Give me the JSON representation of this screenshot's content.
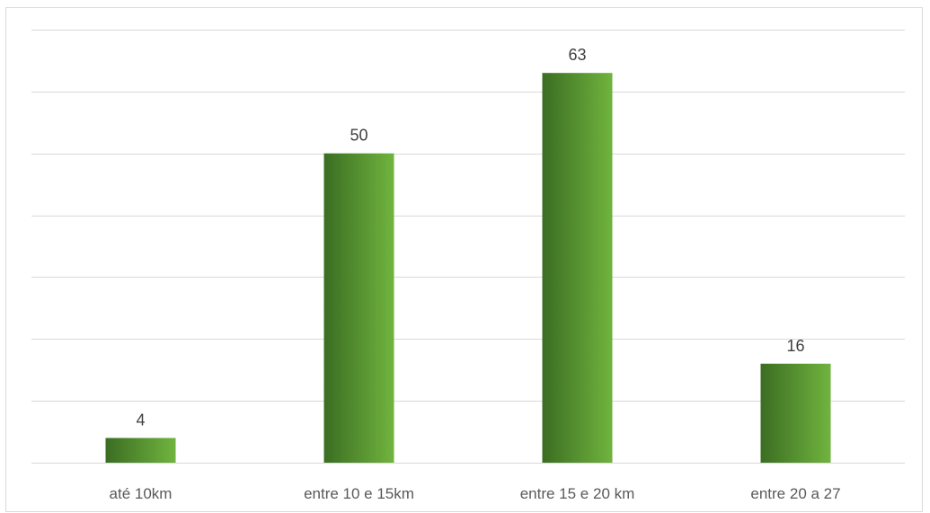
{
  "chart_data": {
    "type": "bar",
    "title": "",
    "xlabel": "",
    "ylabel": "",
    "categories": [
      "até 10km",
      "entre 10 e 15km",
      "entre 15 e 20 km",
      "entre 20 a 27"
    ],
    "values": [
      4,
      50,
      63,
      16
    ],
    "ylim": [
      0,
      70
    ],
    "grid": true,
    "gridline_step": 10,
    "legend": "none",
    "data_labels": true,
    "bar_gradient": [
      "#3b6d22",
      "#70b43e"
    ],
    "gridline_color": "#d9d9d9",
    "label_color": "#404040"
  }
}
